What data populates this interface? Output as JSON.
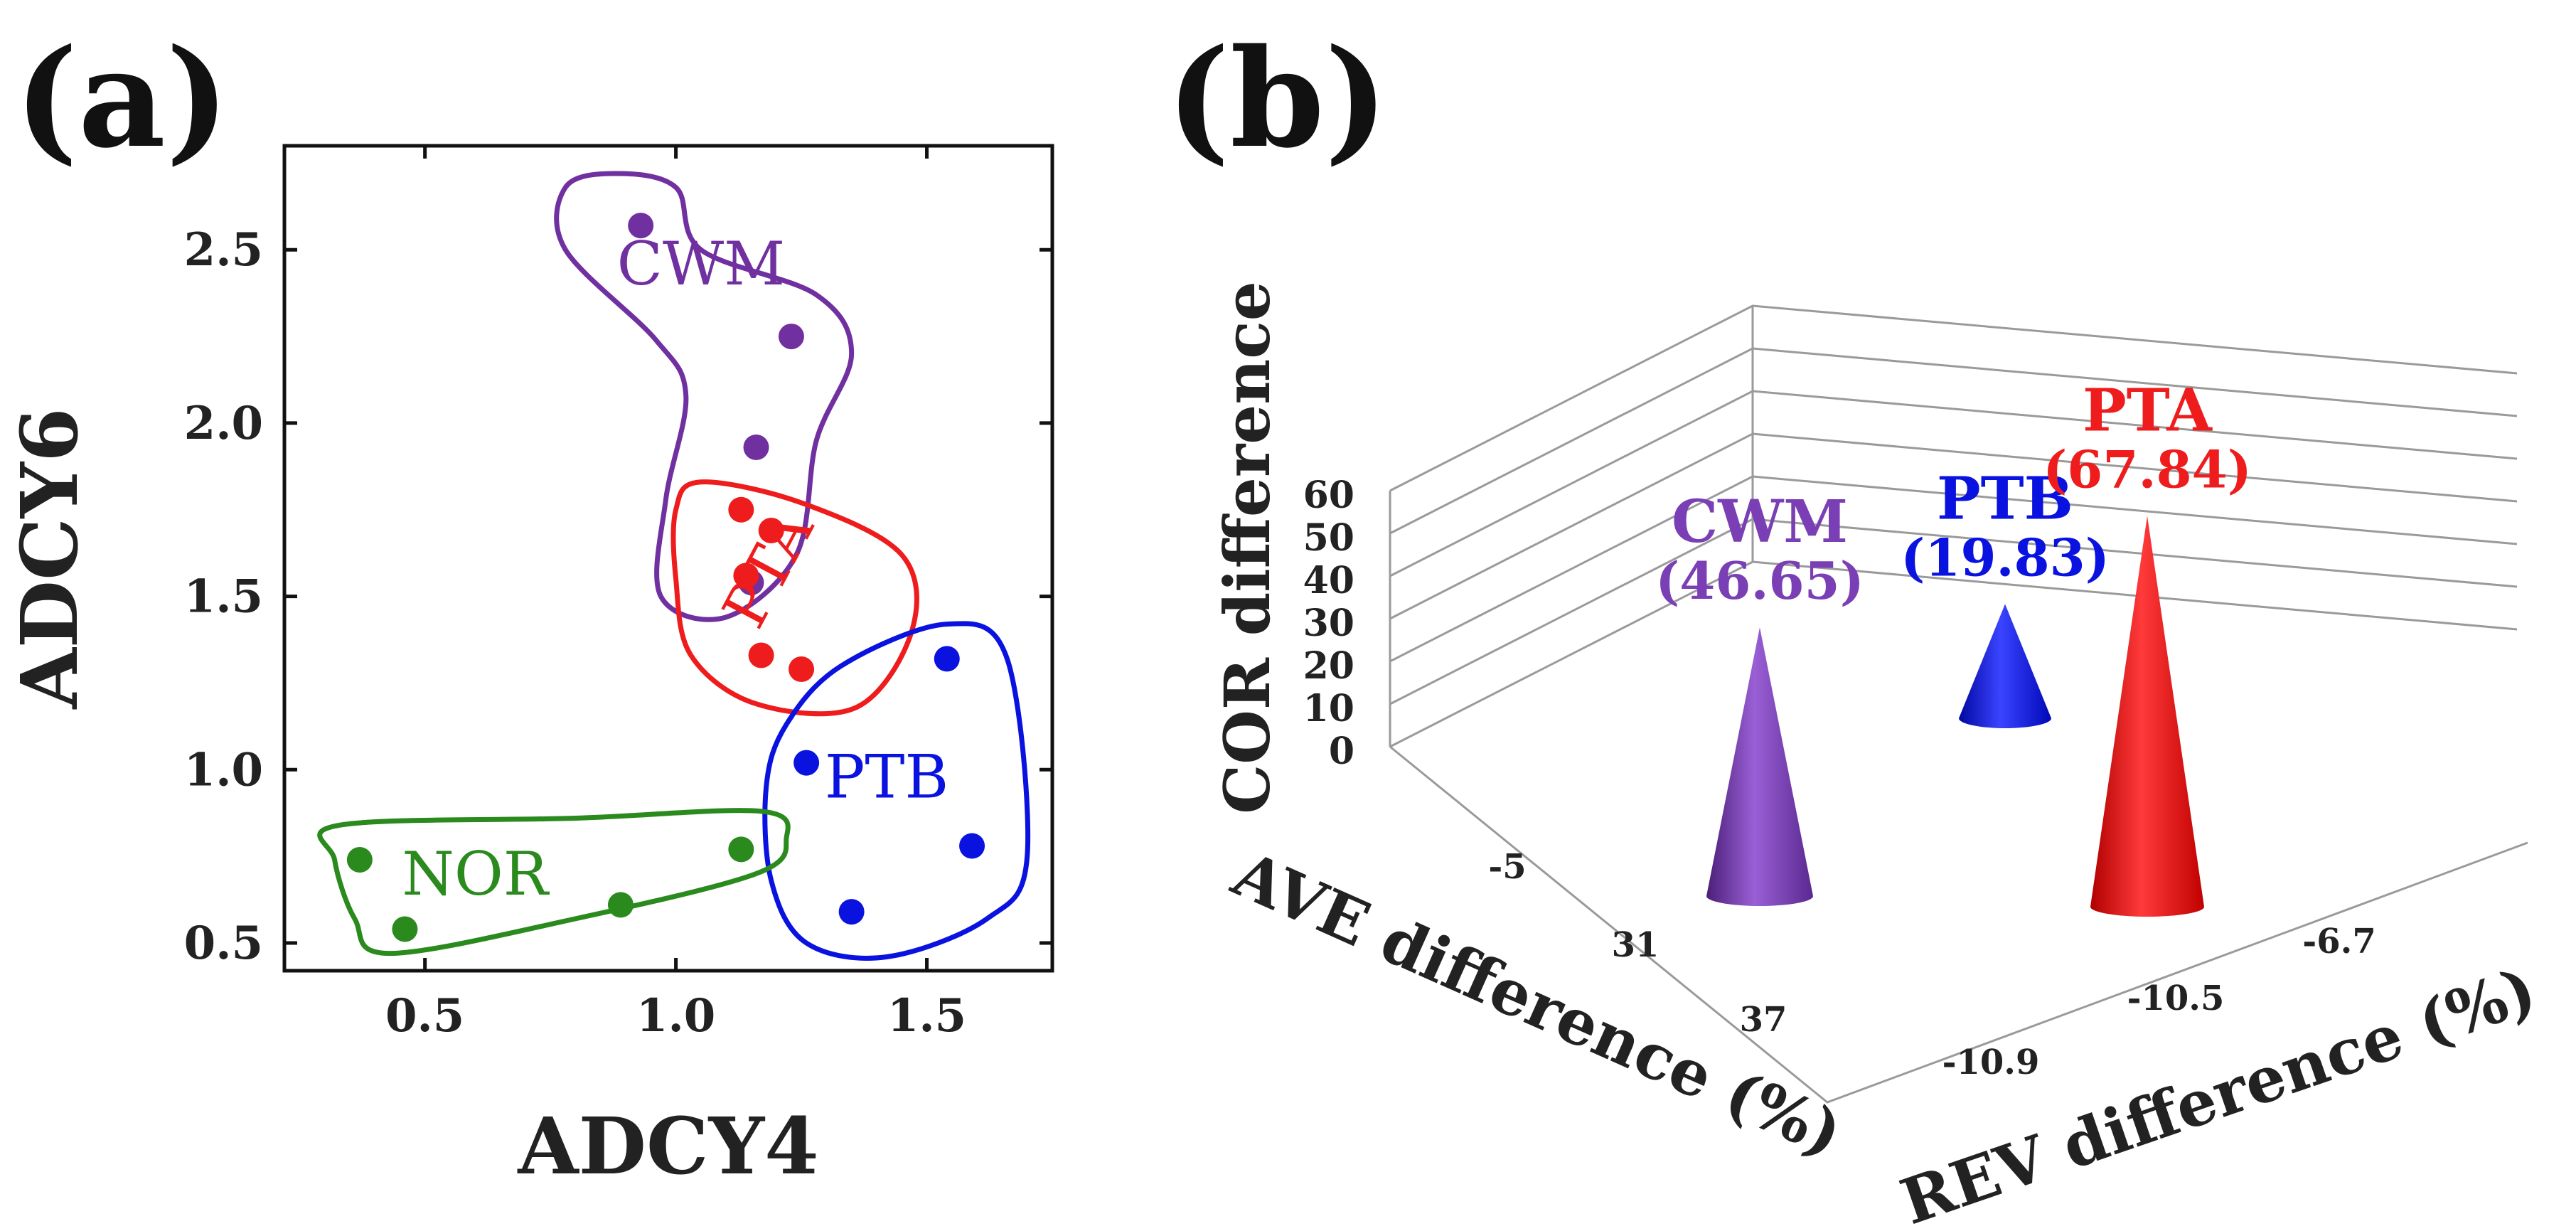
{
  "panels": {
    "a": {
      "label": "(a)"
    },
    "b": {
      "label": "(b)"
    }
  },
  "chart_data": [
    {
      "type": "scatter",
      "panel": "(a)",
      "xlabel": "ADCY4",
      "ylabel": "ADCY6",
      "xlim": [
        0.22,
        1.75
      ],
      "ylim": [
        0.42,
        2.8
      ],
      "xticks": [
        {
          "value": 0.5,
          "label": "0.5"
        },
        {
          "value": 1.0,
          "label": "1.0"
        },
        {
          "value": 1.5,
          "label": "1.5"
        }
      ],
      "yticks": [
        {
          "value": 0.5,
          "label": "0.5"
        },
        {
          "value": 1.0,
          "label": "1.0"
        },
        {
          "value": 1.5,
          "label": "1.5"
        },
        {
          "value": 2.0,
          "label": "2.0"
        },
        {
          "value": 2.5,
          "label": "2.5"
        }
      ],
      "series": [
        {
          "name": "CWM",
          "color": "#7030a0",
          "points": [
            [
              0.93,
              2.57
            ],
            [
              1.23,
              2.25
            ],
            [
              1.16,
              1.93
            ],
            [
              1.15,
              1.54
            ]
          ],
          "label_at": [
            1.05,
            2.4
          ],
          "boundary": [
            [
              0.88,
              2.72
            ],
            [
              0.78,
              2.68
            ],
            [
              0.78,
              2.5
            ],
            [
              0.96,
              2.24
            ],
            [
              1.02,
              2.08
            ],
            [
              0.98,
              1.78
            ],
            [
              0.97,
              1.5
            ],
            [
              1.1,
              1.44
            ],
            [
              1.24,
              1.62
            ],
            [
              1.28,
              1.95
            ],
            [
              1.35,
              2.2
            ],
            [
              1.28,
              2.37
            ],
            [
              1.05,
              2.5
            ],
            [
              1.0,
              2.68
            ]
          ]
        },
        {
          "name": "PTA",
          "color": "#ee1c1c",
          "points": [
            [
              1.13,
              1.75
            ],
            [
              1.19,
              1.69
            ],
            [
              1.14,
              1.56
            ],
            [
              1.17,
              1.33
            ],
            [
              1.25,
              1.29
            ]
          ],
          "label_at": [
            1.22,
            1.55
          ],
          "boundary": [
            [
              1.05,
              1.83
            ],
            [
              1.25,
              1.77
            ],
            [
              1.45,
              1.62
            ],
            [
              1.47,
              1.4
            ],
            [
              1.36,
              1.18
            ],
            [
              1.16,
              1.19
            ],
            [
              1.03,
              1.33
            ],
            [
              1.0,
              1.55
            ],
            [
              1.0,
              1.75
            ]
          ]
        },
        {
          "name": "PTB",
          "color": "#0a12e0",
          "points": [
            [
              1.54,
              1.32
            ],
            [
              1.26,
              1.02
            ],
            [
              1.59,
              0.78
            ],
            [
              1.35,
              0.59
            ]
          ],
          "label_at": [
            1.42,
            0.92
          ],
          "boundary": [
            [
              1.33,
              1.3
            ],
            [
              1.54,
              1.42
            ],
            [
              1.66,
              1.32
            ],
            [
              1.7,
              0.75
            ],
            [
              1.62,
              0.57
            ],
            [
              1.42,
              0.46
            ],
            [
              1.26,
              0.5
            ],
            [
              1.19,
              0.68
            ],
            [
              1.18,
              0.95
            ],
            [
              1.22,
              1.13
            ]
          ]
        },
        {
          "name": "NOR",
          "color": "#2a8a1e",
          "points": [
            [
              0.37,
              0.74
            ],
            [
              0.46,
              0.54
            ],
            [
              0.89,
              0.61
            ],
            [
              1.13,
              0.77
            ]
          ],
          "label_at": [
            0.6,
            0.64
          ],
          "boundary": [
            [
              0.33,
              0.84
            ],
            [
              0.8,
              0.86
            ],
            [
              1.17,
              0.88
            ],
            [
              1.22,
              0.8
            ],
            [
              1.16,
              0.7
            ],
            [
              0.8,
              0.57
            ],
            [
              0.43,
              0.47
            ],
            [
              0.36,
              0.57
            ],
            [
              0.32,
              0.74
            ]
          ]
        }
      ]
    },
    {
      "type": "bar",
      "subtype": "3d-cone",
      "panel": "(b)",
      "ylabel": "COR difference",
      "xlabel": "AVE difference (%)",
      "zlabel": "REV difference (%)",
      "ylim": [
        0,
        60
      ],
      "yticks": [
        0,
        10,
        20,
        30,
        40,
        50,
        60
      ],
      "ave_ticks": [
        "-5",
        "31",
        "37"
      ],
      "rev_ticks": [
        "-6.7",
        "-10.5",
        "-10.9"
      ],
      "series": [
        {
          "name": "CWM",
          "value_label": "(46.65)",
          "value": 46.65,
          "ave": "-5",
          "rev": "-6.7",
          "color": "#7a3fb4"
        },
        {
          "name": "PTB",
          "value_label": "(19.83)",
          "value": 19.83,
          "ave": "31",
          "rev": "-10.5",
          "color": "#0a12e0"
        },
        {
          "name": "PTA",
          "value_label": "(67.84)",
          "value": 67.84,
          "ave": "37",
          "rev": "-10.9",
          "color": "#ee1c1c"
        }
      ]
    }
  ]
}
